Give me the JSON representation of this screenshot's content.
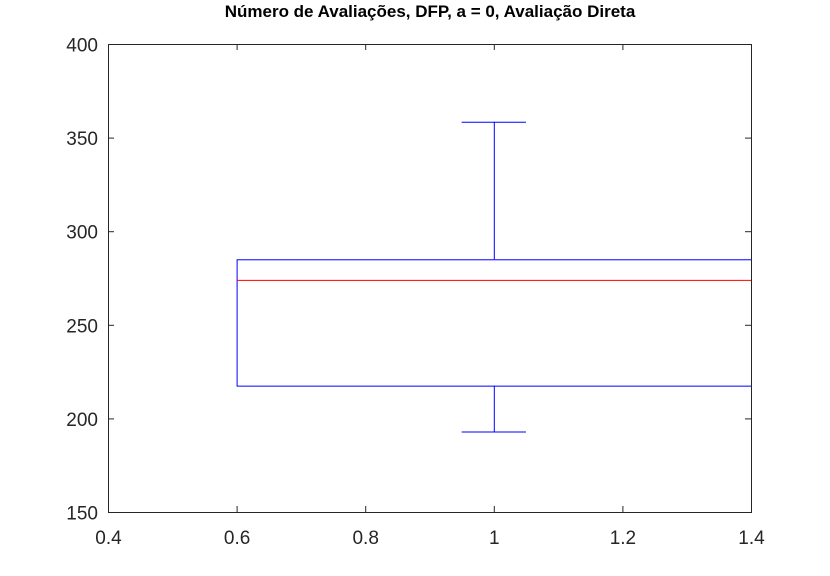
{
  "chart_data": {
    "type": "box",
    "title": "Número de Avaliações, DFP, a = 0, Avaliação Direta",
    "xlabel": "",
    "ylabel": "",
    "xlim": [
      0.4,
      1.4
    ],
    "ylim": [
      150,
      400
    ],
    "xticks": [
      0.4,
      0.6,
      0.8,
      1,
      1.2,
      1.4
    ],
    "xtick_labels": [
      "0.4",
      "0.6",
      "0.8",
      "1",
      "1.2",
      "1.4"
    ],
    "yticks": [
      150,
      200,
      250,
      300,
      350,
      400
    ],
    "ytick_labels": [
      "150",
      "200",
      "250",
      "300",
      "350",
      "400"
    ],
    "grid": false,
    "box": {
      "position": 1,
      "box_left": 0.6,
      "box_right": 1.4,
      "whisker_cap_left": 0.95,
      "whisker_cap_right": 1.05,
      "min": 193,
      "q1": 217.5,
      "median": 274,
      "q3": 285,
      "max": 358.5
    },
    "colors": {
      "box": "#0000ff",
      "median": "#ff0000",
      "axes": "#262626"
    }
  }
}
